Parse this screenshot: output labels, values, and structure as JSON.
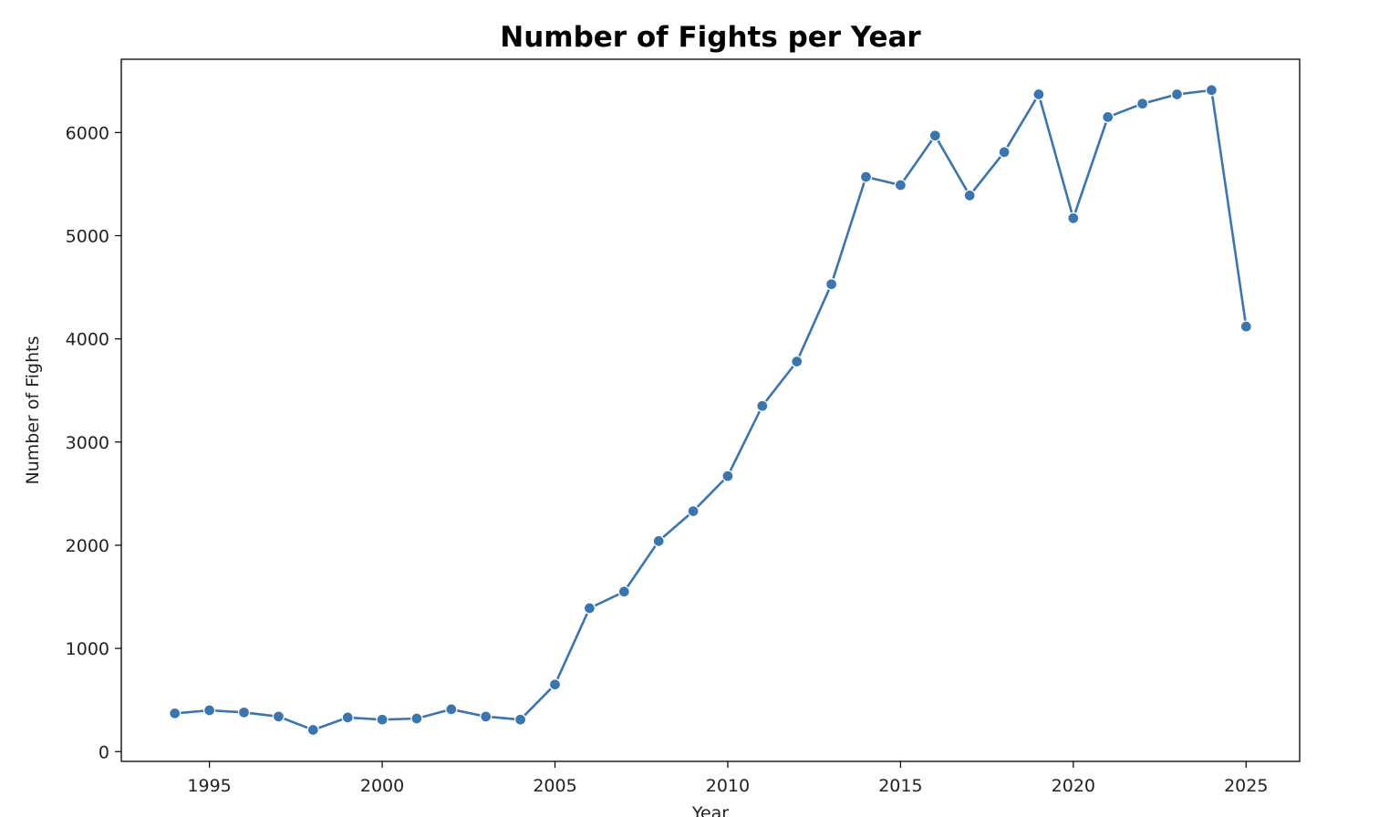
{
  "chart_data": {
    "type": "line",
    "title": "Number of Fights per Year",
    "xlabel": "Year",
    "ylabel": "Number of Fights",
    "xlim": [
      1992.45,
      2026.55
    ],
    "ylim": [
      -95,
      6710
    ],
    "xticks": [
      1995,
      2000,
      2005,
      2010,
      2015,
      2020,
      2025
    ],
    "yticks": [
      0,
      1000,
      2000,
      3000,
      4000,
      5000,
      6000
    ],
    "grid": false,
    "legend": "none",
    "series": [
      {
        "color": "#3b75af",
        "marker": "circle",
        "x": [
          1994,
          1995,
          1996,
          1997,
          1998,
          1999,
          2000,
          2001,
          2002,
          2003,
          2004,
          2005,
          2006,
          2007,
          2008,
          2009,
          2010,
          2011,
          2012,
          2013,
          2014,
          2015,
          2016,
          2017,
          2018,
          2019,
          2020,
          2021,
          2022,
          2023,
          2024,
          2025
        ],
        "y": [
          370,
          400,
          380,
          340,
          210,
          330,
          310,
          320,
          410,
          340,
          310,
          650,
          1390,
          1550,
          2040,
          2330,
          2670,
          3350,
          3780,
          4530,
          5570,
          5490,
          5970,
          5390,
          5810,
          6370,
          5170,
          6150,
          6280,
          6370,
          6410,
          4120
        ]
      }
    ]
  }
}
